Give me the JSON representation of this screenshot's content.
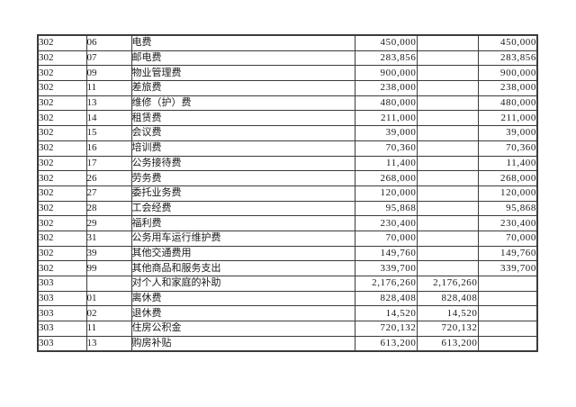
{
  "document": {
    "background_color": "#ffffff",
    "border_color": "#3b3b3b",
    "text_color": "#1a1a1a"
  },
  "table": {
    "rows": [
      {
        "code": "302",
        "sub": "06",
        "name": "电费",
        "a1": "450,000",
        "a2": "",
        "a3": "450,000"
      },
      {
        "code": "302",
        "sub": "07",
        "name": "邮电费",
        "a1": "283,856",
        "a2": "",
        "a3": "283,856"
      },
      {
        "code": "302",
        "sub": "09",
        "name": "物业管理费",
        "a1": "900,000",
        "a2": "",
        "a3": "900,000"
      },
      {
        "code": "302",
        "sub": "11",
        "name": "差旅费",
        "a1": "238,000",
        "a2": "",
        "a3": "238,000"
      },
      {
        "code": "302",
        "sub": "13",
        "name": "维修（护）费",
        "a1": "480,000",
        "a2": "",
        "a3": "480,000"
      },
      {
        "code": "302",
        "sub": "14",
        "name": "租赁费",
        "a1": "211,000",
        "a2": "",
        "a3": "211,000"
      },
      {
        "code": "302",
        "sub": "15",
        "name": "会议费",
        "a1": "39,000",
        "a2": "",
        "a3": "39,000"
      },
      {
        "code": "302",
        "sub": "16",
        "name": "培训费",
        "a1": "70,360",
        "a2": "",
        "a3": "70,360"
      },
      {
        "code": "302",
        "sub": "17",
        "name": "公务接待费",
        "a1": "11,400",
        "a2": "",
        "a3": "11,400"
      },
      {
        "code": "302",
        "sub": "26",
        "name": "劳务费",
        "a1": "268,000",
        "a2": "",
        "a3": "268,000"
      },
      {
        "code": "302",
        "sub": "27",
        "name": "委托业务费",
        "a1": "120,000",
        "a2": "",
        "a3": "120,000"
      },
      {
        "code": "302",
        "sub": "28",
        "name": "工会经费",
        "a1": "95,868",
        "a2": "",
        "a3": "95,868"
      },
      {
        "code": "302",
        "sub": "29",
        "name": "福利费",
        "a1": "230,400",
        "a2": "",
        "a3": "230,400"
      },
      {
        "code": "302",
        "sub": "31",
        "name": "公务用车运行维护费",
        "a1": "70,000",
        "a2": "",
        "a3": "70,000"
      },
      {
        "code": "302",
        "sub": "39",
        "name": "其他交通费用",
        "a1": "149,760",
        "a2": "",
        "a3": "149,760"
      },
      {
        "code": "302",
        "sub": "99",
        "name": "其他商品和服务支出",
        "a1": "339,700",
        "a2": "",
        "a3": "339,700"
      },
      {
        "code": "303",
        "sub": "",
        "name": "对个人和家庭的补助",
        "a1": "2,176,260",
        "a2": "2,176,260",
        "a3": ""
      },
      {
        "code": "303",
        "sub": "01",
        "name": "离休费",
        "a1": "828,408",
        "a2": "828,408",
        "a3": ""
      },
      {
        "code": "303",
        "sub": "02",
        "name": "退休费",
        "a1": "14,520",
        "a2": "14,520",
        "a3": ""
      },
      {
        "code": "303",
        "sub": "11",
        "name": "住房公积金",
        "a1": "720,132",
        "a2": "720,132",
        "a3": ""
      },
      {
        "code": "303",
        "sub": "13",
        "name": "购房补贴",
        "a1": "613,200",
        "a2": "613,200",
        "a3": ""
      }
    ]
  }
}
